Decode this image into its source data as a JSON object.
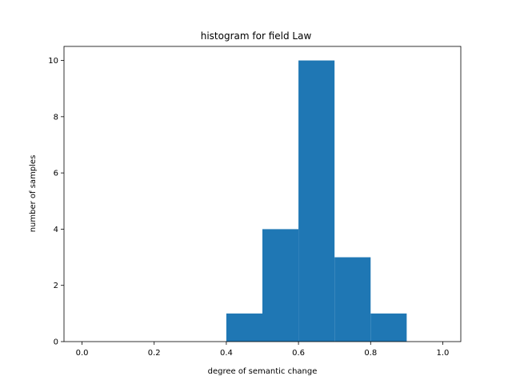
{
  "chart_data": {
    "type": "bar",
    "title": "histogram for field Law",
    "xlabel": "degree of semantic change",
    "ylabel": "number of samples",
    "bins": [
      {
        "start": 0.4,
        "end": 0.5,
        "count": 1
      },
      {
        "start": 0.5,
        "end": 0.6,
        "count": 4
      },
      {
        "start": 0.6,
        "end": 0.7,
        "count": 10
      },
      {
        "start": 0.7,
        "end": 0.8,
        "count": 3
      },
      {
        "start": 0.8,
        "end": 0.9,
        "count": 1
      }
    ],
    "xlim": [
      -0.05,
      1.05
    ],
    "ylim": [
      0,
      10.5
    ],
    "xticks": [
      "0.0",
      "0.2",
      "0.4",
      "0.6",
      "0.8",
      "1.0"
    ],
    "yticks": [
      "0",
      "2",
      "4",
      "6",
      "8",
      "10"
    ],
    "bar_color": "#1f77b4",
    "grid": false,
    "legend": "none"
  }
}
